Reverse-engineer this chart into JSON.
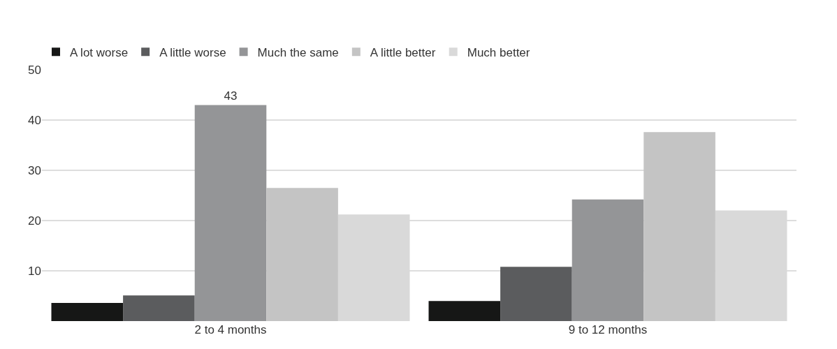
{
  "chart_data": {
    "type": "bar",
    "categories": [
      "2 to 4 months",
      "9 to 12 months"
    ],
    "series": [
      {
        "name": "A lot worse",
        "color": "#161716",
        "values": [
          3.6,
          4.0
        ]
      },
      {
        "name": "A little worse",
        "color": "#5b5c5e",
        "values": [
          5.1,
          10.8
        ]
      },
      {
        "name": "Much the same",
        "color": "#949597",
        "values": [
          43,
          24.2
        ],
        "value_labels": [
          "43",
          null
        ]
      },
      {
        "name": "A little better",
        "color": "#c4c4c4",
        "values": [
          26.5,
          37.6
        ]
      },
      {
        "name": "Much better",
        "color": "#d9d9d9",
        "values": [
          21.2,
          22.0
        ]
      }
    ],
    "ylim": [
      0,
      50
    ],
    "yticks": [
      10,
      20,
      30,
      40,
      50
    ],
    "grid": "y",
    "legend": "top left"
  }
}
